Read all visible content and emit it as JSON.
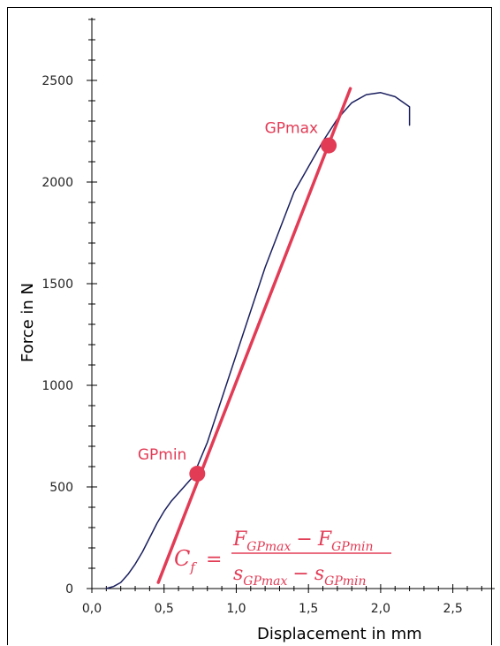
{
  "chart_data": {
    "type": "line",
    "xlabel": "Displacement in mm",
    "ylabel": "Force in N",
    "xlim": [
      0,
      2.9
    ],
    "ylim": [
      0,
      2800
    ],
    "x_ticks": [
      0,
      0.5,
      1.0,
      1.5,
      2.0,
      2.5
    ],
    "x_tick_labels": [
      "0,0",
      "0,5",
      "1,0",
      "1,5",
      "2,0",
      "2,5"
    ],
    "y_ticks": [
      0,
      500,
      1000,
      1500,
      2000,
      2500
    ],
    "y_tick_labels": [
      "0",
      "500",
      "1000",
      "1500",
      "2000",
      "2500"
    ],
    "grid": false,
    "series": [
      {
        "color": "#1a1f5e",
        "points": [
          [
            0.1,
            0
          ],
          [
            0.15,
            10
          ],
          [
            0.2,
            30
          ],
          [
            0.25,
            70
          ],
          [
            0.3,
            120
          ],
          [
            0.35,
            180
          ],
          [
            0.4,
            250
          ],
          [
            0.45,
            320
          ],
          [
            0.5,
            380
          ],
          [
            0.55,
            430
          ],
          [
            0.6,
            470
          ],
          [
            0.65,
            510
          ],
          [
            0.7,
            550
          ],
          [
            0.8,
            720
          ],
          [
            1.0,
            1150
          ],
          [
            1.2,
            1580
          ],
          [
            1.4,
            1950
          ],
          [
            1.6,
            2200
          ],
          [
            1.7,
            2310
          ],
          [
            1.8,
            2390
          ],
          [
            1.9,
            2430
          ],
          [
            2.0,
            2440
          ],
          [
            2.1,
            2420
          ],
          [
            2.2,
            2370
          ],
          [
            2.2,
            2280
          ]
        ]
      },
      {
        "color": "#e23b55",
        "points": [
          [
            0.46,
            30
          ],
          [
            1.79,
            2460
          ]
        ]
      }
    ],
    "markers": [
      {
        "label": "GPmin",
        "x": 0.73,
        "y": 565
      },
      {
        "label": "GPmax",
        "x": 1.64,
        "y": 2180
      }
    ],
    "formula": {
      "lhs": "C",
      "lhs_sub": "f",
      "eq": "=",
      "num_a": "F",
      "num_a_sub": "GPmax",
      "minus": "−",
      "num_b": "F",
      "num_b_sub": "GPmin",
      "den_a": "s",
      "den_a_sub": "GPmax",
      "den_b": "s",
      "den_b_sub": "GPmin"
    },
    "colors": {
      "curve": "#1a1f5e",
      "fit_line": "#e23b55"
    }
  }
}
